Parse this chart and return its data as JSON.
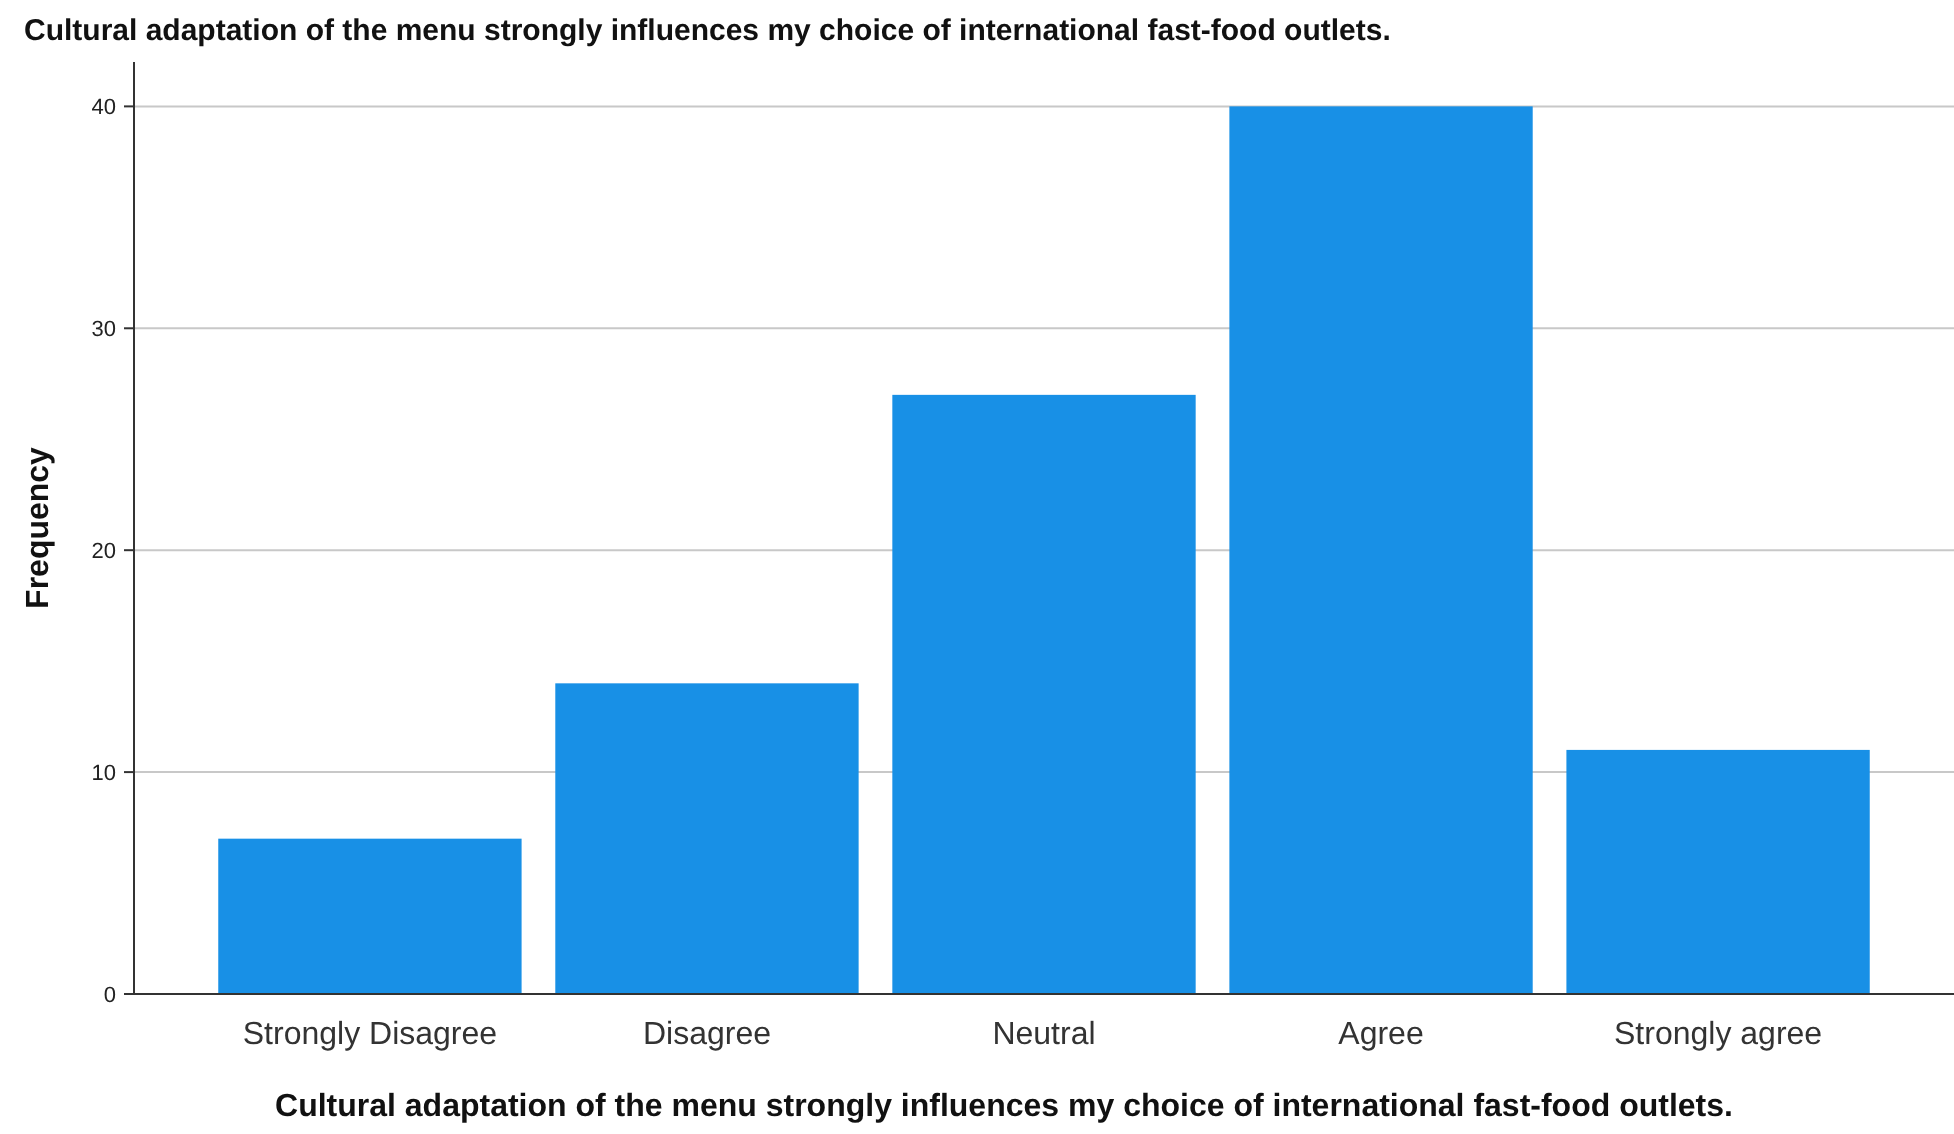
{
  "chart_data": {
    "type": "bar",
    "title": "Cultural adaptation of the menu strongly influences my choice of international fast-food outlets.",
    "xlabel": "Cultural adaptation of the menu strongly influences my choice of international fast-food outlets.",
    "ylabel": "Frequency",
    "categories": [
      "Strongly Disagree",
      "Disagree",
      "Neutral",
      "Agree",
      "Strongly agree"
    ],
    "values": [
      7,
      14,
      27,
      40,
      11
    ],
    "color": "#1890e6",
    "ylim": [
      0,
      42
    ],
    "yticks": [
      0,
      10,
      20,
      30,
      40
    ],
    "grid": "y"
  }
}
